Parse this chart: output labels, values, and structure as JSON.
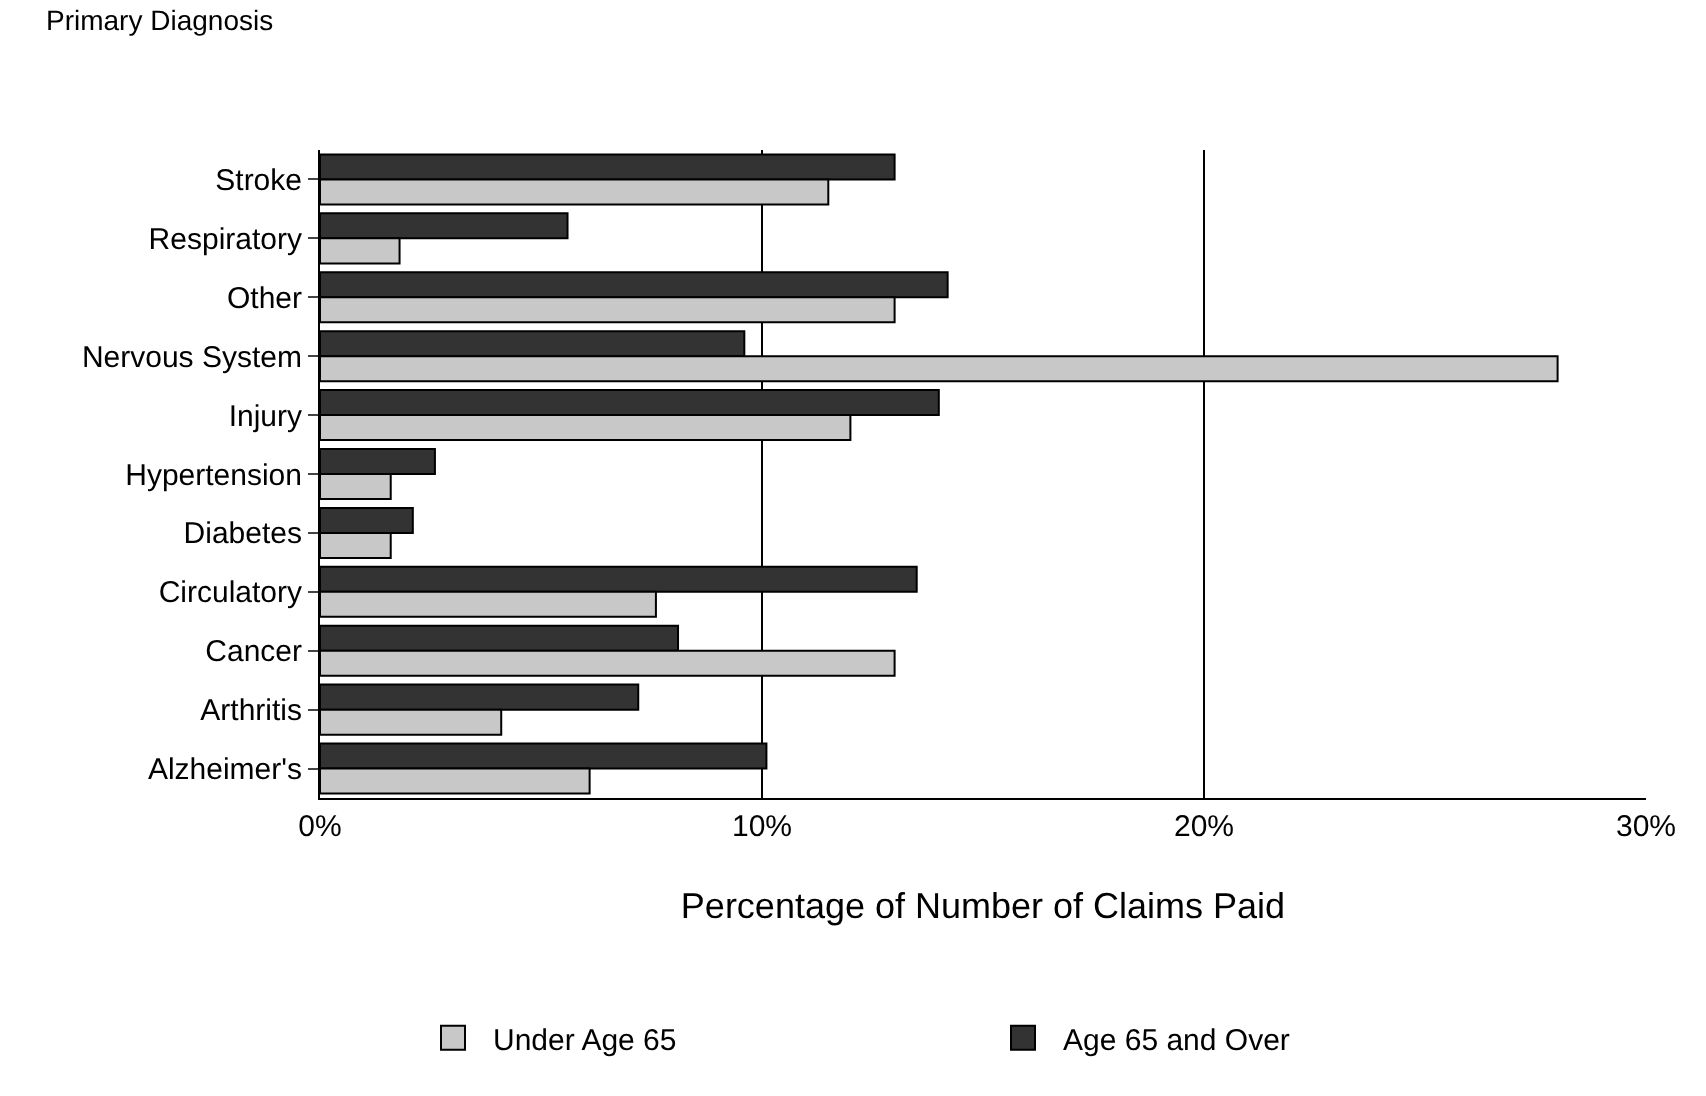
{
  "chart_data": {
    "type": "bar",
    "orientation": "horizontal",
    "ylabel": "Primary Diagnosis",
    "xlabel": "Percentage of Number of Claims Paid",
    "categories": [
      "Stroke",
      "Respiratory",
      "Other",
      "Nervous System",
      "Injury",
      "Hypertension",
      "Diabetes",
      "Circulatory",
      "Cancer",
      "Arthritis",
      "Alzheimer's"
    ],
    "series": [
      {
        "name": "Under Age 65",
        "color": "#c8c8c8",
        "values": [
          11.5,
          1.8,
          13.0,
          28.0,
          12.0,
          1.6,
          1.6,
          7.6,
          13.0,
          4.1,
          6.1
        ]
      },
      {
        "name": "Age 65 and Over",
        "color": "#333333",
        "values": [
          13.0,
          5.6,
          14.2,
          9.6,
          14.0,
          2.6,
          2.1,
          13.5,
          8.1,
          7.2,
          10.1
        ]
      }
    ],
    "xlim": [
      0,
      30
    ],
    "xticks": [
      {
        "value": 0,
        "label": "0%"
      },
      {
        "value": 10,
        "label": "10%"
      },
      {
        "value": 20,
        "label": "20%"
      },
      {
        "value": 30,
        "label": "30%"
      }
    ],
    "grid": "x",
    "legend": "bottom"
  }
}
